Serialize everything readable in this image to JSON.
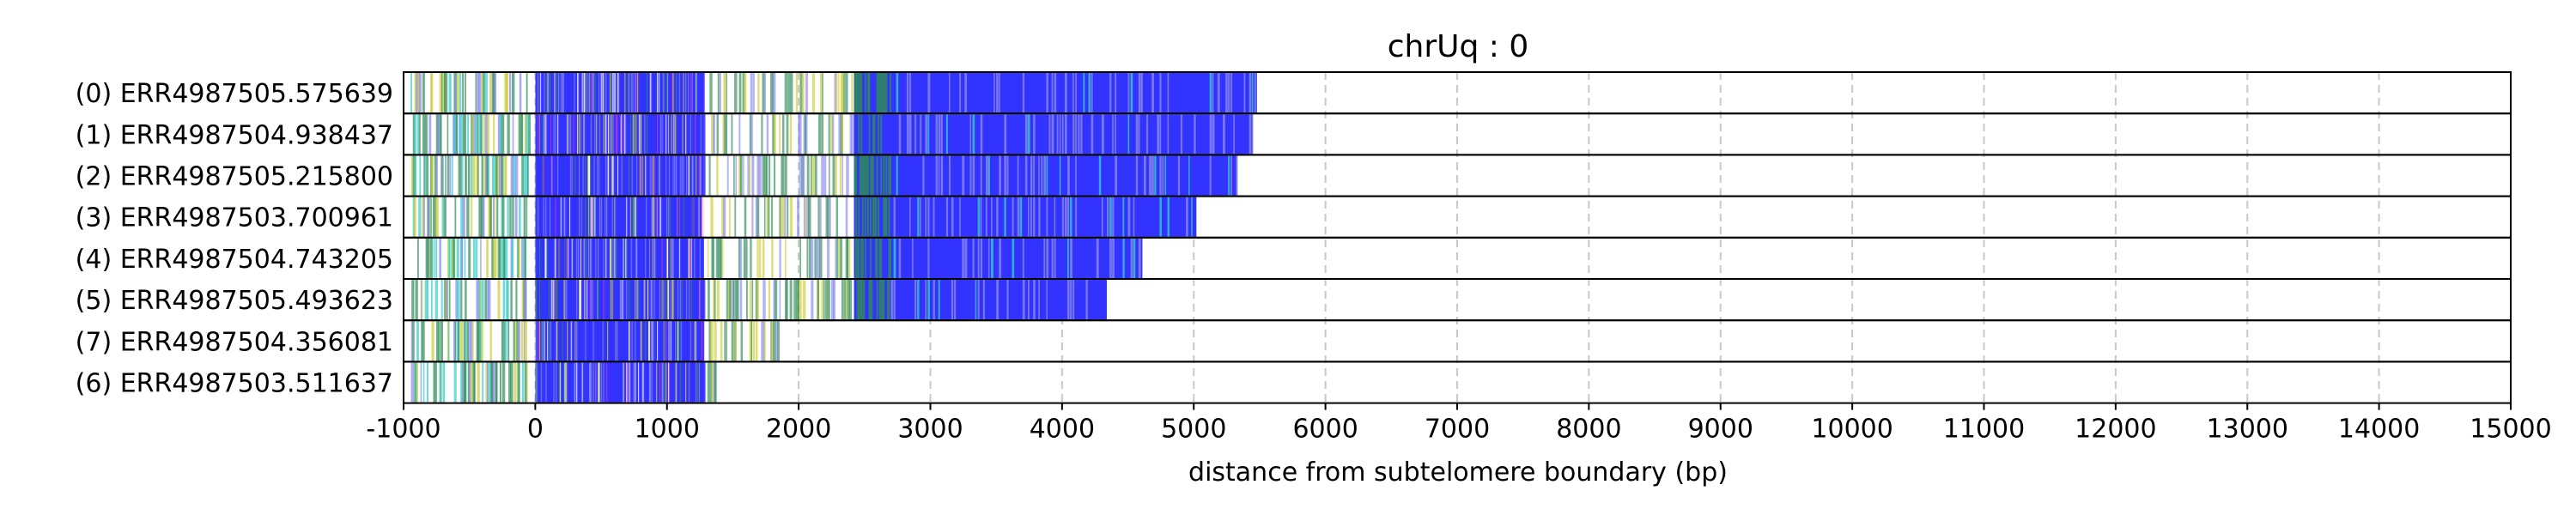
{
  "chart_data": {
    "type": "heatmap",
    "title": "chrUq : 0",
    "xlabel": "distance from subtelomere boundary (bp)",
    "ylabel": "",
    "xlim": [
      -1000,
      15000
    ],
    "x_ticks": [
      "-1000",
      "0",
      "1000",
      "2000",
      "3000",
      "4000",
      "5000",
      "6000",
      "7000",
      "8000",
      "9000",
      "10000",
      "11000",
      "12000",
      "13000",
      "14000",
      "15000"
    ],
    "grid": true,
    "colors": {
      "kmer": "#3333ff",
      "kmer_light": "#8888ee",
      "green": "#2e8b57",
      "yellow": "#cccc33",
      "cyan": "#33cccc",
      "magenta": "#cc33cc",
      "grid": "#c8c8c8"
    },
    "rows": [
      {
        "label": "(0) ERR4987505.575639",
        "start": -1000,
        "end": 5480
      },
      {
        "label": "(1) ERR4987504.938437",
        "start": -1000,
        "end": 5450
      },
      {
        "label": "(2) ERR4987505.215800",
        "start": -1000,
        "end": 5330
      },
      {
        "label": "(3) ERR4987503.700961",
        "start": -1000,
        "end": 5020
      },
      {
        "label": "(4) ERR4987504.743205",
        "start": -1000,
        "end": 4610
      },
      {
        "label": "(5) ERR4987505.493623",
        "start": -1000,
        "end": 4340
      },
      {
        "label": "(7) ERR4987504.356081",
        "start": -1000,
        "end": 1850
      },
      {
        "label": "(6) ERR4987503.511637",
        "start": -1000,
        "end": 1380
      }
    ]
  }
}
